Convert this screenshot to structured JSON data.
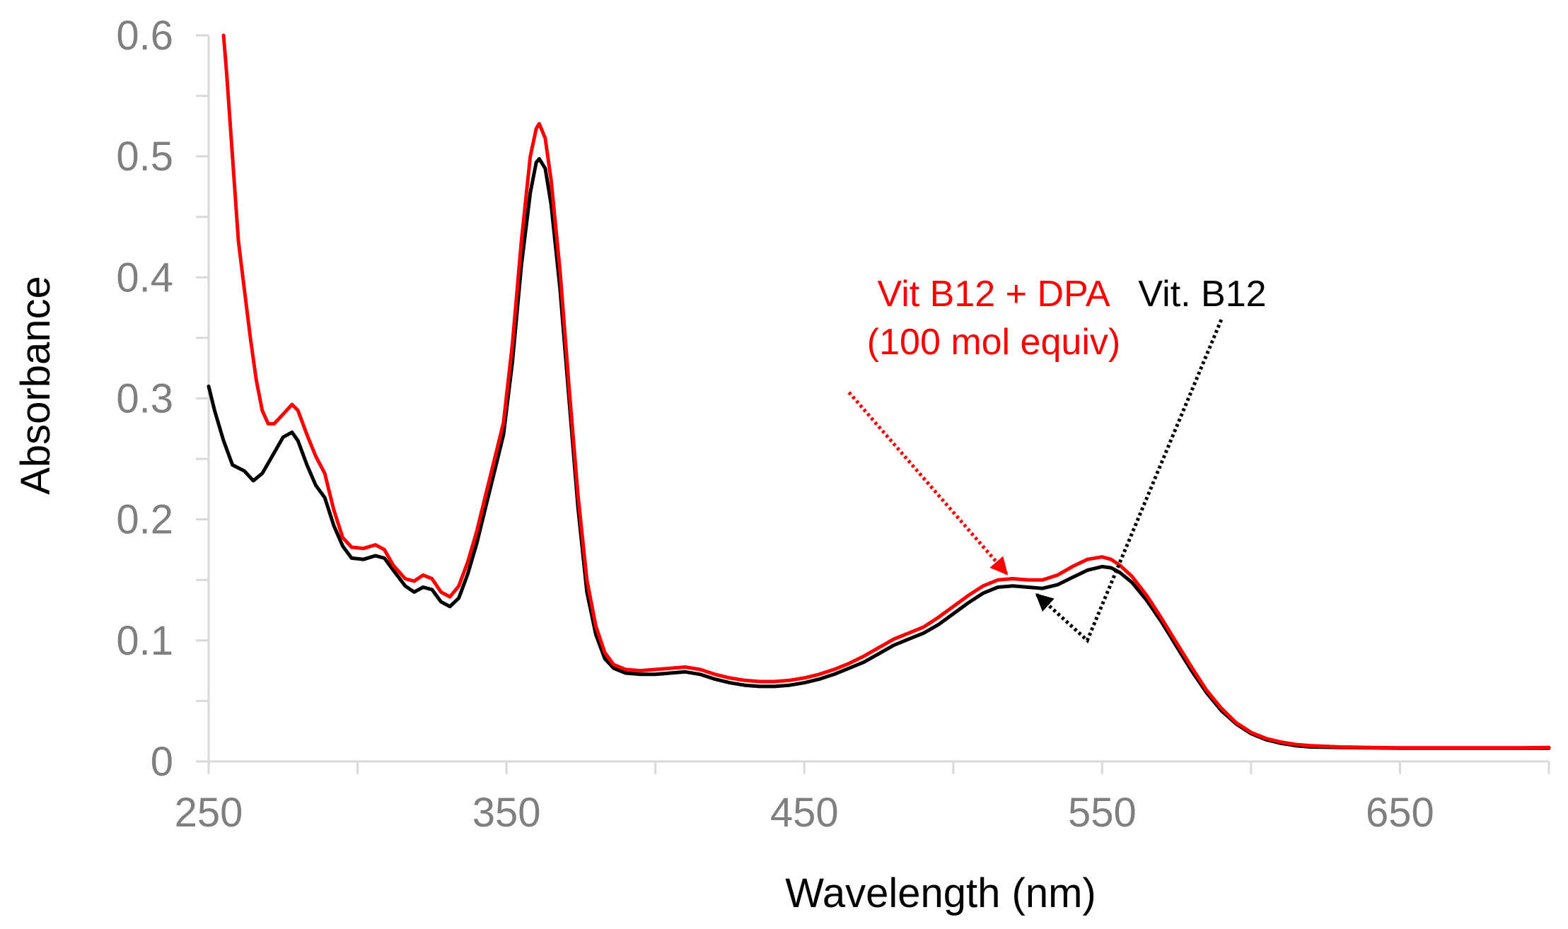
{
  "chart_data": {
    "type": "line",
    "title": "",
    "xlabel": "Wavelength (nm)",
    "ylabel": "Absorbance",
    "xlim": [
      250,
      700
    ],
    "ylim": [
      0,
      0.6
    ],
    "x_ticks": [
      250,
      350,
      450,
      550,
      650
    ],
    "x_minor_ticks": [
      300,
      400,
      500,
      600,
      700
    ],
    "y_ticks": [
      0,
      0.1,
      0.2,
      0.3,
      0.4,
      0.5,
      0.6
    ],
    "y_tick_labels": [
      "0",
      "0.1",
      "0.2",
      "0.3",
      "0.4",
      "0.5",
      "0.6"
    ],
    "x_tick_labels": [
      "250",
      "350",
      "450",
      "550",
      "650"
    ],
    "grid": false,
    "series": [
      {
        "name": "Vit. B12",
        "color": "#000000",
        "points": [
          [
            250,
            0.31
          ],
          [
            252,
            0.29
          ],
          [
            255,
            0.265
          ],
          [
            258,
            0.245
          ],
          [
            262,
            0.24
          ],
          [
            265,
            0.232
          ],
          [
            268,
            0.238
          ],
          [
            272,
            0.255
          ],
          [
            275,
            0.268
          ],
          [
            278,
            0.272
          ],
          [
            280,
            0.265
          ],
          [
            283,
            0.245
          ],
          [
            286,
            0.228
          ],
          [
            289,
            0.218
          ],
          [
            292,
            0.195
          ],
          [
            295,
            0.178
          ],
          [
            298,
            0.168
          ],
          [
            302,
            0.167
          ],
          [
            306,
            0.17
          ],
          [
            309,
            0.168
          ],
          [
            312,
            0.158
          ],
          [
            316,
            0.145
          ],
          [
            319,
            0.14
          ],
          [
            322,
            0.144
          ],
          [
            325,
            0.142
          ],
          [
            328,
            0.132
          ],
          [
            331,
            0.128
          ],
          [
            334,
            0.135
          ],
          [
            337,
            0.155
          ],
          [
            340,
            0.18
          ],
          [
            343,
            0.21
          ],
          [
            346,
            0.24
          ],
          [
            349,
            0.27
          ],
          [
            352,
            0.33
          ],
          [
            355,
            0.41
          ],
          [
            358,
            0.47
          ],
          [
            360,
            0.495
          ],
          [
            361,
            0.498
          ],
          [
            363,
            0.49
          ],
          [
            365,
            0.46
          ],
          [
            368,
            0.39
          ],
          [
            371,
            0.3
          ],
          [
            374,
            0.21
          ],
          [
            377,
            0.14
          ],
          [
            380,
            0.105
          ],
          [
            383,
            0.085
          ],
          [
            386,
            0.077
          ],
          [
            390,
            0.073
          ],
          [
            395,
            0.072
          ],
          [
            400,
            0.072
          ],
          [
            405,
            0.073
          ],
          [
            410,
            0.074
          ],
          [
            415,
            0.072
          ],
          [
            420,
            0.068
          ],
          [
            425,
            0.065
          ],
          [
            430,
            0.063
          ],
          [
            435,
            0.062
          ],
          [
            440,
            0.062
          ],
          [
            445,
            0.063
          ],
          [
            450,
            0.065
          ],
          [
            455,
            0.068
          ],
          [
            460,
            0.072
          ],
          [
            465,
            0.077
          ],
          [
            470,
            0.082
          ],
          [
            475,
            0.089
          ],
          [
            480,
            0.096
          ],
          [
            485,
            0.101
          ],
          [
            490,
            0.106
          ],
          [
            495,
            0.113
          ],
          [
            500,
            0.122
          ],
          [
            505,
            0.131
          ],
          [
            510,
            0.139
          ],
          [
            515,
            0.144
          ],
          [
            520,
            0.145
          ],
          [
            525,
            0.144
          ],
          [
            530,
            0.143
          ],
          [
            535,
            0.146
          ],
          [
            540,
            0.152
          ],
          [
            545,
            0.158
          ],
          [
            550,
            0.161
          ],
          [
            553,
            0.16
          ],
          [
            556,
            0.156
          ],
          [
            560,
            0.148
          ],
          [
            565,
            0.133
          ],
          [
            570,
            0.115
          ],
          [
            575,
            0.095
          ],
          [
            580,
            0.075
          ],
          [
            585,
            0.057
          ],
          [
            590,
            0.042
          ],
          [
            595,
            0.031
          ],
          [
            600,
            0.023
          ],
          [
            605,
            0.018
          ],
          [
            610,
            0.015
          ],
          [
            615,
            0.013
          ],
          [
            620,
            0.012
          ],
          [
            630,
            0.0115
          ],
          [
            640,
            0.0112
          ],
          [
            650,
            0.011
          ],
          [
            660,
            0.011
          ],
          [
            670,
            0.011
          ],
          [
            680,
            0.011
          ],
          [
            690,
            0.011
          ],
          [
            700,
            0.011
          ]
        ]
      },
      {
        "name": "Vit B12 + DPA (100 mol equiv)",
        "color": "#ff0000",
        "points": [
          [
            255,
            0.6
          ],
          [
            256,
            0.57
          ],
          [
            258,
            0.5
          ],
          [
            260,
            0.43
          ],
          [
            262,
            0.39
          ],
          [
            264,
            0.35
          ],
          [
            266,
            0.315
          ],
          [
            268,
            0.29
          ],
          [
            270,
            0.279
          ],
          [
            272,
            0.279
          ],
          [
            275,
            0.287
          ],
          [
            278,
            0.295
          ],
          [
            280,
            0.29
          ],
          [
            283,
            0.27
          ],
          [
            286,
            0.252
          ],
          [
            289,
            0.238
          ],
          [
            292,
            0.208
          ],
          [
            295,
            0.185
          ],
          [
            298,
            0.177
          ],
          [
            302,
            0.176
          ],
          [
            306,
            0.179
          ],
          [
            309,
            0.175
          ],
          [
            312,
            0.162
          ],
          [
            316,
            0.151
          ],
          [
            319,
            0.149
          ],
          [
            322,
            0.154
          ],
          [
            325,
            0.151
          ],
          [
            328,
            0.14
          ],
          [
            331,
            0.136
          ],
          [
            334,
            0.145
          ],
          [
            337,
            0.165
          ],
          [
            340,
            0.19
          ],
          [
            343,
            0.22
          ],
          [
            346,
            0.25
          ],
          [
            349,
            0.28
          ],
          [
            352,
            0.345
          ],
          [
            355,
            0.43
          ],
          [
            358,
            0.5
          ],
          [
            360,
            0.523
          ],
          [
            361,
            0.527
          ],
          [
            363,
            0.515
          ],
          [
            365,
            0.48
          ],
          [
            368,
            0.405
          ],
          [
            371,
            0.31
          ],
          [
            374,
            0.22
          ],
          [
            377,
            0.15
          ],
          [
            380,
            0.112
          ],
          [
            383,
            0.09
          ],
          [
            386,
            0.08
          ],
          [
            390,
            0.076
          ],
          [
            395,
            0.075
          ],
          [
            400,
            0.076
          ],
          [
            405,
            0.077
          ],
          [
            410,
            0.078
          ],
          [
            415,
            0.076
          ],
          [
            420,
            0.072
          ],
          [
            425,
            0.069
          ],
          [
            430,
            0.067
          ],
          [
            435,
            0.066
          ],
          [
            440,
            0.066
          ],
          [
            445,
            0.067
          ],
          [
            450,
            0.069
          ],
          [
            455,
            0.072
          ],
          [
            460,
            0.076
          ],
          [
            465,
            0.081
          ],
          [
            470,
            0.087
          ],
          [
            475,
            0.094
          ],
          [
            480,
            0.101
          ],
          [
            485,
            0.106
          ],
          [
            490,
            0.111
          ],
          [
            495,
            0.119
          ],
          [
            500,
            0.128
          ],
          [
            505,
            0.137
          ],
          [
            510,
            0.145
          ],
          [
            515,
            0.15
          ],
          [
            520,
            0.151
          ],
          [
            525,
            0.15
          ],
          [
            530,
            0.15
          ],
          [
            535,
            0.154
          ],
          [
            540,
            0.161
          ],
          [
            545,
            0.167
          ],
          [
            550,
            0.169
          ],
          [
            553,
            0.167
          ],
          [
            556,
            0.162
          ],
          [
            560,
            0.153
          ],
          [
            565,
            0.137
          ],
          [
            570,
            0.118
          ],
          [
            575,
            0.098
          ],
          [
            580,
            0.078
          ],
          [
            585,
            0.059
          ],
          [
            590,
            0.044
          ],
          [
            595,
            0.032
          ],
          [
            600,
            0.024
          ],
          [
            605,
            0.019
          ],
          [
            610,
            0.016
          ],
          [
            615,
            0.014
          ],
          [
            620,
            0.013
          ],
          [
            630,
            0.012
          ],
          [
            640,
            0.0115
          ],
          [
            650,
            0.0112
          ],
          [
            660,
            0.0112
          ],
          [
            670,
            0.0112
          ],
          [
            680,
            0.0112
          ],
          [
            690,
            0.0112
          ],
          [
            700,
            0.0115
          ]
        ]
      }
    ],
    "annotations": [
      {
        "name": "red-annotation",
        "lines": [
          "Vit B12 + DPA",
          "(100 mol equiv)"
        ],
        "color": "#ff0000",
        "arrow_from": [
          465,
          0.305
        ],
        "arrow_to": [
          518,
          0.155
        ]
      },
      {
        "name": "black-annotation",
        "lines": [
          "Vit. B12"
        ],
        "color": "#000000",
        "arrow_path": [
          [
            590,
            0.365
          ],
          [
            545,
            0.1
          ],
          [
            528,
            0.138
          ]
        ]
      }
    ]
  },
  "colors": {
    "axis": "#d9d9d9",
    "tick_text": "#7f7f7f",
    "title_text": "#000000"
  }
}
